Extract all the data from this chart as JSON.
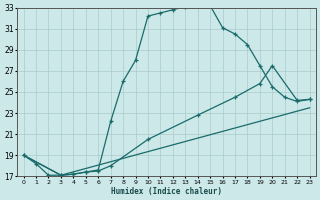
{
  "xlabel": "Humidex (Indice chaleur)",
  "bg_color": "#cce8e8",
  "grid_color": "#aacccc",
  "line_color": "#1a6b6b",
  "xlim": [
    -0.5,
    23.5
  ],
  "ylim": [
    17,
    33
  ],
  "xticks": [
    0,
    1,
    2,
    3,
    4,
    5,
    6,
    7,
    8,
    9,
    10,
    11,
    12,
    13,
    14,
    15,
    16,
    17,
    18,
    19,
    20,
    21,
    22,
    23
  ],
  "yticks": [
    17,
    19,
    21,
    23,
    25,
    27,
    29,
    31,
    33
  ],
  "curve1_x": [
    0,
    1,
    2,
    3,
    4,
    5,
    6,
    7,
    8,
    9,
    10,
    11,
    12,
    13,
    14,
    15,
    16,
    17,
    18,
    19,
    20,
    21,
    22,
    23
  ],
  "curve1_y": [
    19.0,
    18.2,
    17.1,
    17.1,
    17.2,
    17.4,
    17.6,
    22.2,
    26.0,
    28.0,
    32.2,
    32.5,
    32.8,
    33.1,
    33.2,
    33.2,
    31.1,
    30.5,
    29.5,
    27.5,
    25.5,
    24.5,
    24.1,
    24.3
  ],
  "curve2_x": [
    0,
    3,
    4,
    5,
    6,
    7,
    10,
    14,
    17,
    19,
    20,
    22,
    23
  ],
  "curve2_y": [
    19.0,
    17.1,
    17.2,
    17.4,
    17.5,
    18.0,
    20.5,
    22.8,
    24.5,
    25.8,
    27.5,
    24.2,
    24.3
  ],
  "curve3_x": [
    0,
    3,
    23
  ],
  "curve3_y": [
    19.0,
    17.1,
    23.5
  ]
}
